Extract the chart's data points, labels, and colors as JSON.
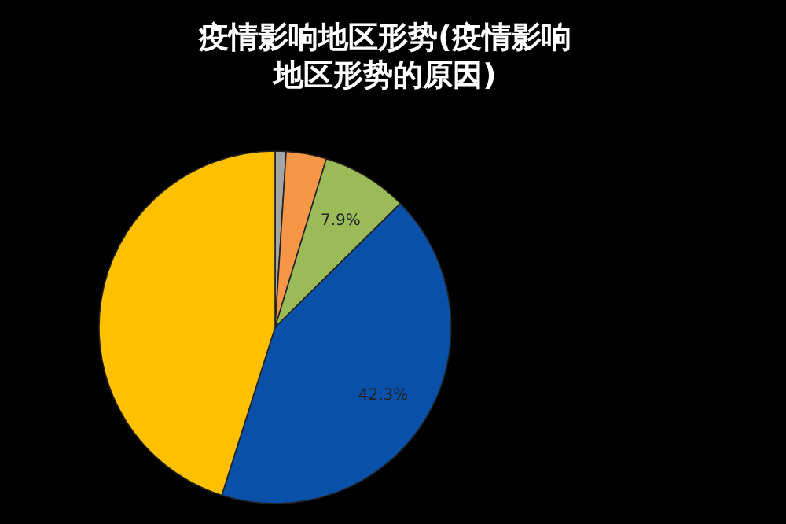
{
  "chart_data": {
    "type": "pie",
    "title": "疫情影响地区形势(疫情影响地区形势的原因)",
    "categories": [
      null,
      null,
      null,
      null,
      null
    ],
    "values": [
      1.0,
      3.7,
      7.9,
      42.3,
      45.1
    ],
    "colors": [
      "#a5a5a5",
      "#f79646",
      "#9bbb59",
      "#0950a8",
      "#ffc000"
    ],
    "value_labels": [
      null,
      null,
      "7.9%",
      "42.3%",
      null
    ]
  }
}
